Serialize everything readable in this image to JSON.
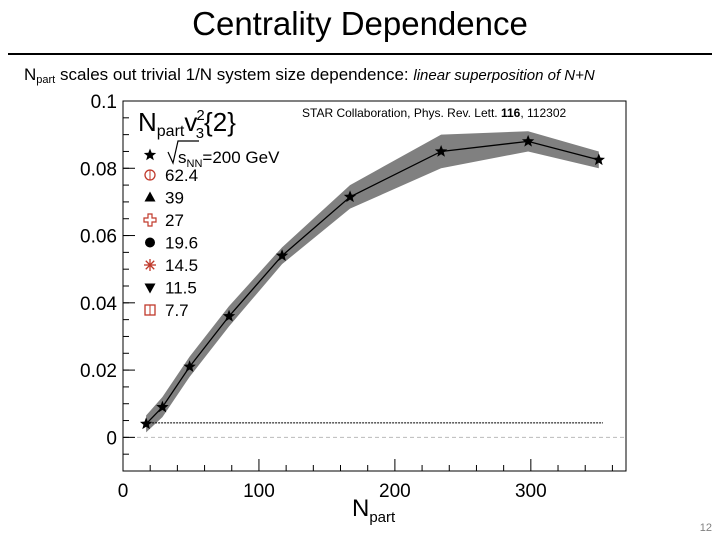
{
  "slide": {
    "title": "Centrality Dependence",
    "subtitle_lead": "N",
    "subtitle_sub": "part",
    "subtitle_main": " scales out trivial 1/N system size dependence: ",
    "subtitle_italic": "linear superposition of N+N",
    "page_number": "12"
  },
  "chart_data": {
    "type": "line",
    "title_main": "N",
    "title_sub": "part",
    "title_v": "v",
    "title_sup": "2",
    "title_sub2": "3",
    "title_tail": "{2}",
    "xlabel_main": "N",
    "xlabel_sub": "part",
    "ylabel": "",
    "xlim": [
      0,
      370
    ],
    "ylim": [
      -0.01,
      0.1
    ],
    "x_ticks": [
      0,
      100,
      200,
      300
    ],
    "x_tick_labels": [
      "0",
      "100",
      "200",
      "300"
    ],
    "y_ticks": [
      0,
      0.02,
      0.04,
      0.06,
      0.08,
      0.1
    ],
    "y_tick_labels": [
      "0",
      "0.02",
      "0.04",
      "0.06",
      "0.08",
      "0.1"
    ],
    "citation_pre": "STAR Collaboration, Phys. Rev. Lett. ",
    "citation_bold": "116",
    "citation_post": ", 112302",
    "legend": {
      "header_pre": "s",
      "header_sub": "NN",
      "header_post": "=200 GeV",
      "entries": [
        {
          "label": "62.4",
          "marker": "open-circle",
          "color": "#c0392b"
        },
        {
          "label": "39",
          "marker": "triangle-up",
          "color": "#000000"
        },
        {
          "label": "27",
          "marker": "open-cross",
          "color": "#c0392b"
        },
        {
          "label": "19.6",
          "marker": "filled-circle",
          "color": "#000000"
        },
        {
          "label": "14.5",
          "marker": "asterisk",
          "color": "#c0392b"
        },
        {
          "label": "11.5",
          "marker": "triangle-down",
          "color": "#000000"
        },
        {
          "label": "7.7",
          "marker": "open-square",
          "color": "#c0392b"
        }
      ],
      "placement": "top-left"
    },
    "series": [
      {
        "marker": "star",
        "color": "#000000",
        "band_color": "#808080",
        "x": [
          17,
          29,
          49,
          78,
          117,
          167,
          234,
          298,
          350
        ],
        "y": [
          0.004,
          0.009,
          0.021,
          0.036,
          0.054,
          0.0715,
          0.085,
          0.088,
          0.0825
        ],
        "band_low": [
          0.0015,
          0.006,
          0.018,
          0.033,
          0.0515,
          0.068,
          0.08,
          0.085,
          0.08
        ],
        "band_high": [
          0.0065,
          0.012,
          0.024,
          0.039,
          0.0565,
          0.075,
          0.09,
          0.091,
          0.085
        ]
      }
    ],
    "reference_line_y": 0.0043,
    "zero_line_y": 0,
    "grid": false
  }
}
